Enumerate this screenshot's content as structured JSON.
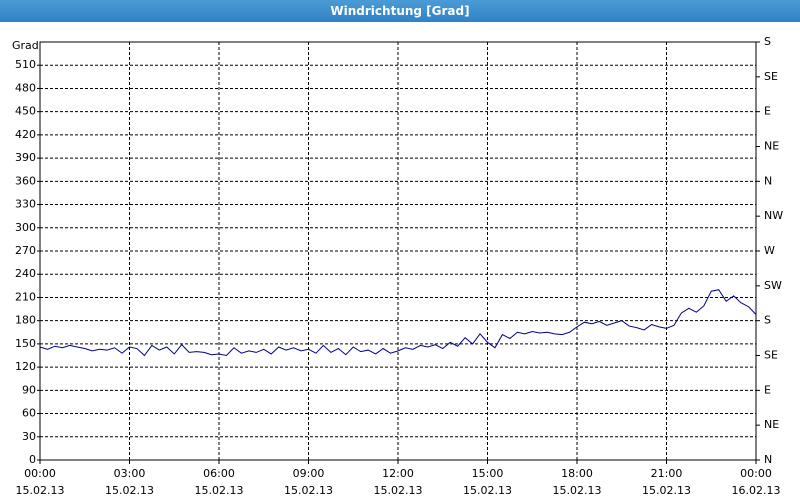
{
  "chart_data": {
    "type": "line",
    "title": "Windrichtung [Grad]",
    "y_label": "Grad",
    "xlim": [
      0,
      24
    ],
    "xticks": [
      {
        "value": 0,
        "label": "00:00"
      },
      {
        "value": 3,
        "label": "03:00"
      },
      {
        "value": 6,
        "label": "06:00"
      },
      {
        "value": 9,
        "label": "09:00"
      },
      {
        "value": 12,
        "label": "12:00"
      },
      {
        "value": 15,
        "label": "15:00"
      },
      {
        "value": 18,
        "label": "18:00"
      },
      {
        "value": 21,
        "label": "21:00"
      },
      {
        "value": 24,
        "label": "00:00"
      }
    ],
    "xtick_dates": [
      "15.02.13",
      "15.02.13",
      "15.02.13",
      "15.02.13",
      "15.02.13",
      "15.02.13",
      "15.02.13",
      "15.02.13",
      "16.02.13"
    ],
    "ylim": [
      0,
      540
    ],
    "yticks": [
      0,
      30,
      60,
      90,
      120,
      150,
      180,
      210,
      240,
      270,
      300,
      330,
      360,
      390,
      420,
      450,
      480,
      510
    ],
    "y2lim": [
      0,
      540
    ],
    "y2ticks": [
      {
        "value": 0,
        "label": "N"
      },
      {
        "value": 45,
        "label": "NE"
      },
      {
        "value": 90,
        "label": "E"
      },
      {
        "value": 135,
        "label": "SE"
      },
      {
        "value": 180,
        "label": "S"
      },
      {
        "value": 225,
        "label": "SW"
      },
      {
        "value": 270,
        "label": "W"
      },
      {
        "value": 315,
        "label": "NW"
      },
      {
        "value": 360,
        "label": "N"
      },
      {
        "value": 405,
        "label": "NE"
      },
      {
        "value": 450,
        "label": "E"
      },
      {
        "value": 495,
        "label": "SE"
      },
      {
        "value": 540,
        "label": "S"
      }
    ],
    "grid": true,
    "x": [
      0,
      0.25,
      0.5,
      0.75,
      1,
      1.25,
      1.5,
      1.75,
      2,
      2.25,
      2.5,
      2.75,
      3,
      3.25,
      3.5,
      3.75,
      4,
      4.25,
      4.5,
      4.75,
      5,
      5.25,
      5.5,
      5.75,
      6,
      6.25,
      6.5,
      6.75,
      7,
      7.25,
      7.5,
      7.75,
      8,
      8.25,
      8.5,
      8.75,
      9,
      9.25,
      9.5,
      9.75,
      10,
      10.25,
      10.5,
      10.75,
      11,
      11.25,
      11.5,
      11.75,
      12,
      12.25,
      12.5,
      12.75,
      13,
      13.25,
      13.5,
      13.75,
      14,
      14.25,
      14.5,
      14.75,
      15,
      15.25,
      15.5,
      15.75,
      16,
      16.25,
      16.5,
      16.75,
      17,
      17.25,
      17.5,
      17.75,
      18,
      18.25,
      18.5,
      18.75,
      19,
      19.25,
      19.5,
      19.75,
      20,
      20.25,
      20.5,
      20.75,
      21,
      21.25,
      21.5,
      21.75,
      22,
      22.25,
      22.5,
      22.75,
      23,
      23.25,
      23.5,
      23.75,
      24
    ],
    "series": [
      {
        "color": "#00008b",
        "values": [
          146,
          143,
          147,
          145,
          148,
          146,
          144,
          141,
          143,
          142,
          145,
          138,
          146,
          144,
          135,
          148,
          142,
          146,
          137,
          149,
          139,
          140,
          139,
          136,
          137,
          135,
          145,
          138,
          141,
          139,
          143,
          137,
          146,
          142,
          145,
          141,
          143,
          138,
          148,
          139,
          144,
          136,
          146,
          140,
          142,
          137,
          144,
          138,
          141,
          145,
          143,
          148,
          146,
          149,
          144,
          152,
          147,
          158,
          150,
          163,
          152,
          145,
          162,
          157,
          165,
          163,
          166,
          164,
          165,
          163,
          162,
          165,
          172,
          178,
          176,
          179,
          174,
          177,
          180,
          173,
          171,
          168,
          175,
          172,
          170,
          174,
          190,
          196,
          191,
          199,
          218,
          220,
          205,
          212,
          203,
          198,
          188
        ]
      }
    ]
  }
}
